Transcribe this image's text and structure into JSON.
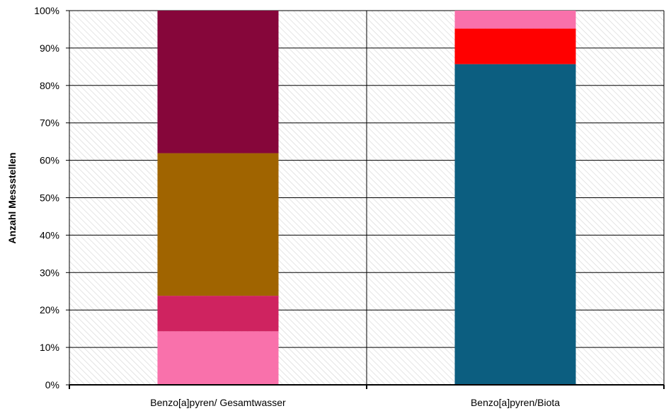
{
  "chart_data": {
    "type": "bar",
    "stacked": true,
    "normalized": true,
    "title": "",
    "xlabel": "",
    "ylabel": "Anzahl Messstellen",
    "ylim": [
      0,
      100
    ],
    "yticks": [
      "0%",
      "10%",
      "20%",
      "30%",
      "40%",
      "50%",
      "60%",
      "70%",
      "80%",
      "90%",
      "100%"
    ],
    "categories": [
      "Benzo[a]pyren/ Gesamtwasser",
      "Benzo[a]pyren/Biota"
    ],
    "grid": true,
    "legend": "none",
    "background_pattern": "diagonal-hatch",
    "series": [
      {
        "color": "#0C5E80",
        "values": [
          0,
          85.7
        ]
      },
      {
        "color": "#FF0000",
        "values": [
          0,
          9.5
        ]
      },
      {
        "color": "#F971AB",
        "values": [
          14.3,
          4.8
        ]
      },
      {
        "color": "#CF2360",
        "values": [
          9.5,
          0
        ]
      },
      {
        "color": "#A06400",
        "values": [
          38.1,
          0
        ]
      },
      {
        "color": "#86063A",
        "values": [
          38.1,
          0
        ]
      }
    ]
  }
}
